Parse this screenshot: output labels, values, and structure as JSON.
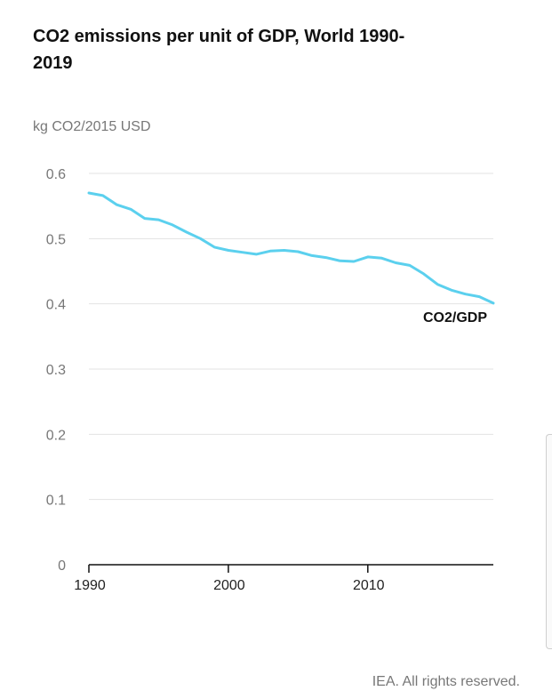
{
  "chart_data": {
    "type": "line",
    "title": "CO2 emissions per unit of GDP, World 1990-2019",
    "ylabel": "kg CO2/2015 USD",
    "xlabel": "",
    "xlim": [
      1990,
      2019
    ],
    "ylim": [
      0,
      0.6
    ],
    "y_ticks": [
      "0",
      "0.1",
      "0.2",
      "0.3",
      "0.4",
      "0.5",
      "0.6"
    ],
    "x_ticks": [
      "1990",
      "2000",
      "2010"
    ],
    "grid": true,
    "series": [
      {
        "name": "CO2/GDP",
        "color": "#5bd0ee",
        "x": [
          1990,
          1991,
          1992,
          1993,
          1994,
          1995,
          1996,
          1997,
          1998,
          1999,
          2000,
          2001,
          2002,
          2003,
          2004,
          2005,
          2006,
          2007,
          2008,
          2009,
          2010,
          2011,
          2012,
          2013,
          2014,
          2015,
          2016,
          2017,
          2018,
          2019
        ],
        "values": [
          0.57,
          0.566,
          0.552,
          0.545,
          0.531,
          0.529,
          0.521,
          0.51,
          0.5,
          0.487,
          0.482,
          0.479,
          0.476,
          0.481,
          0.482,
          0.48,
          0.474,
          0.471,
          0.466,
          0.465,
          0.472,
          0.47,
          0.463,
          0.459,
          0.446,
          0.43,
          0.421,
          0.415,
          0.411,
          0.401
        ]
      }
    ]
  },
  "source": "IEA. All rights reserved."
}
